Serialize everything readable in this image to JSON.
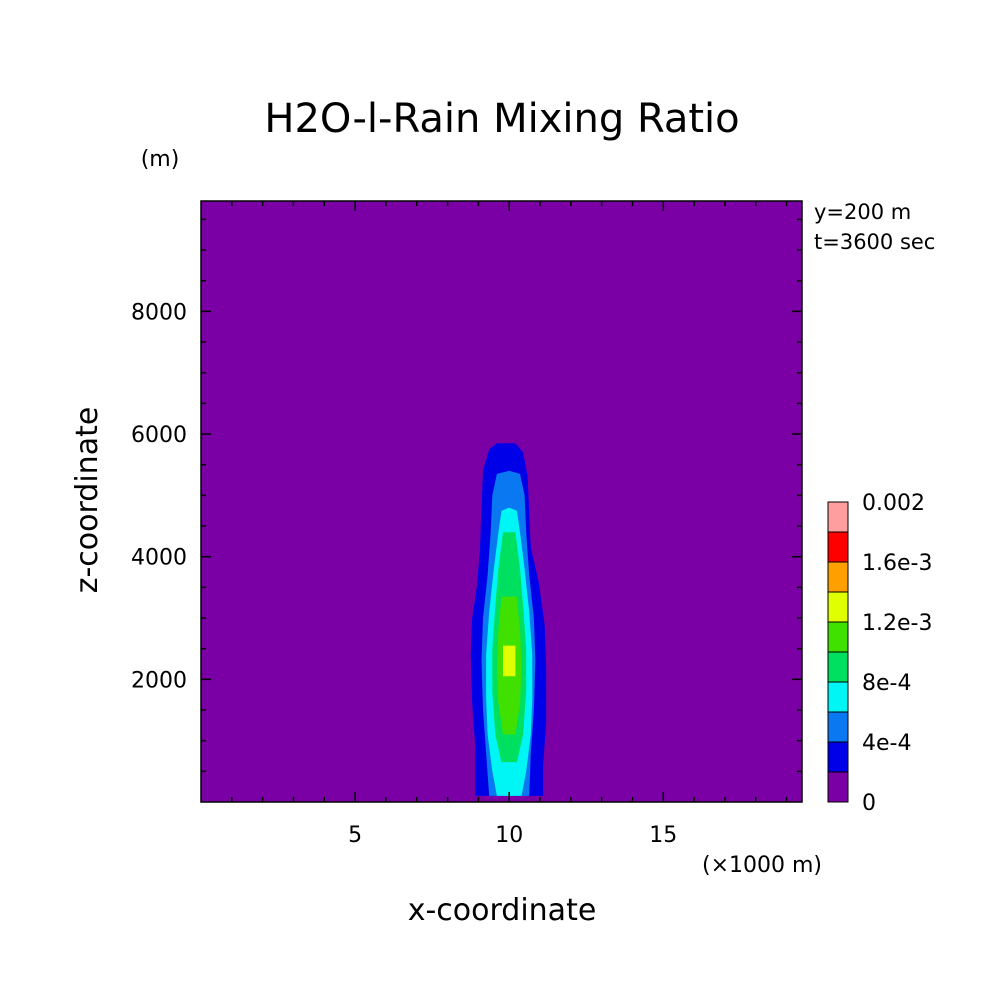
{
  "chart_data": {
    "type": "contour",
    "title": "H2O-l-Rain Mixing Ratio",
    "xlabel": "x-coordinate",
    "ylabel": "z-coordinate",
    "x_unit_label": "(×1000 m)",
    "y_unit_label": "(m)",
    "annotations": [
      "y=200 m",
      "t=3600 sec"
    ],
    "xlim": [
      0,
      19.5
    ],
    "ylim": [
      0,
      9800
    ],
    "x_ticks": [
      5,
      10,
      15
    ],
    "y_ticks": [
      2000,
      4000,
      6000,
      8000
    ],
    "colorbar": {
      "levels": [
        0,
        0.0002,
        0.0004,
        0.0006,
        0.0008,
        0.001,
        0.0012,
        0.0014,
        0.0016,
        0.0018,
        0.002
      ],
      "labels": [
        "0",
        "4e-4",
        "8e-4",
        "1.2e-3",
        "1.6e-3",
        "0.002"
      ],
      "colors": [
        "#7a00a6",
        "#0000e8",
        "#0a78f0",
        "#00f5f5",
        "#00e060",
        "#40e000",
        "#e0ff00",
        "#ffa000",
        "#ff0000",
        "#ff9e9e"
      ]
    },
    "contours": [
      {
        "level": 0.0002,
        "color": "#0000e8",
        "points": [
          [
            8.9,
            100
          ],
          [
            8.9,
            900
          ],
          [
            8.8,
            1600
          ],
          [
            8.75,
            2400
          ],
          [
            8.8,
            3000
          ],
          [
            8.95,
            3500
          ],
          [
            9.05,
            4100
          ],
          [
            9.1,
            4800
          ],
          [
            9.15,
            5400
          ],
          [
            9.35,
            5750
          ],
          [
            9.6,
            5850
          ],
          [
            10.2,
            5850
          ],
          [
            10.45,
            5700
          ],
          [
            10.6,
            5300
          ],
          [
            10.65,
            4700
          ],
          [
            10.7,
            4150
          ],
          [
            10.95,
            3600
          ],
          [
            11.15,
            2900
          ],
          [
            11.2,
            2200
          ],
          [
            11.2,
            1300
          ],
          [
            11.1,
            600
          ],
          [
            11.1,
            100
          ]
        ]
      },
      {
        "level": 0.0004,
        "color": "#0a78f0",
        "points": [
          [
            9.35,
            100
          ],
          [
            9.25,
            800
          ],
          [
            9.15,
            1500
          ],
          [
            9.1,
            2300
          ],
          [
            9.15,
            3000
          ],
          [
            9.3,
            3700
          ],
          [
            9.4,
            4400
          ],
          [
            9.45,
            5000
          ],
          [
            9.6,
            5350
          ],
          [
            10.0,
            5400
          ],
          [
            10.35,
            5350
          ],
          [
            10.5,
            5000
          ],
          [
            10.55,
            4400
          ],
          [
            10.65,
            3700
          ],
          [
            10.8,
            3000
          ],
          [
            10.85,
            2300
          ],
          [
            10.8,
            1500
          ],
          [
            10.7,
            800
          ],
          [
            10.65,
            100
          ]
        ]
      },
      {
        "level": 0.0006,
        "color": "#00f5f5",
        "points": [
          [
            9.6,
            100
          ],
          [
            9.45,
            500
          ],
          [
            9.3,
            1100
          ],
          [
            9.25,
            1700
          ],
          [
            9.25,
            2400
          ],
          [
            9.35,
            3100
          ],
          [
            9.5,
            3800
          ],
          [
            9.65,
            4400
          ],
          [
            9.75,
            4750
          ],
          [
            10.0,
            4800
          ],
          [
            10.25,
            4750
          ],
          [
            10.35,
            4400
          ],
          [
            10.5,
            3800
          ],
          [
            10.65,
            3100
          ],
          [
            10.75,
            2400
          ],
          [
            10.75,
            1700
          ],
          [
            10.7,
            1100
          ],
          [
            10.55,
            500
          ],
          [
            10.4,
            100
          ]
        ]
      },
      {
        "level": 0.0008,
        "color": "#00e060",
        "points": [
          [
            9.75,
            650
          ],
          [
            9.55,
            1100
          ],
          [
            9.45,
            1800
          ],
          [
            9.45,
            2500
          ],
          [
            9.55,
            3200
          ],
          [
            9.65,
            3800
          ],
          [
            9.8,
            4400
          ],
          [
            10.2,
            4400
          ],
          [
            10.35,
            3800
          ],
          [
            10.45,
            3200
          ],
          [
            10.55,
            2500
          ],
          [
            10.55,
            1800
          ],
          [
            10.45,
            1100
          ],
          [
            10.25,
            650
          ]
        ]
      },
      {
        "level": 0.001,
        "color": "#40e000",
        "points": [
          [
            9.8,
            1100
          ],
          [
            9.65,
            1600
          ],
          [
            9.6,
            2200
          ],
          [
            9.65,
            2800
          ],
          [
            9.75,
            3350
          ],
          [
            10.25,
            3350
          ],
          [
            10.35,
            2800
          ],
          [
            10.4,
            2200
          ],
          [
            10.35,
            1600
          ],
          [
            10.2,
            1100
          ]
        ]
      },
      {
        "level": 0.0012,
        "color": "#e0ff00",
        "points": [
          [
            9.8,
            2050
          ],
          [
            9.8,
            2550
          ],
          [
            10.2,
            2550
          ],
          [
            10.2,
            2050
          ]
        ]
      }
    ]
  }
}
